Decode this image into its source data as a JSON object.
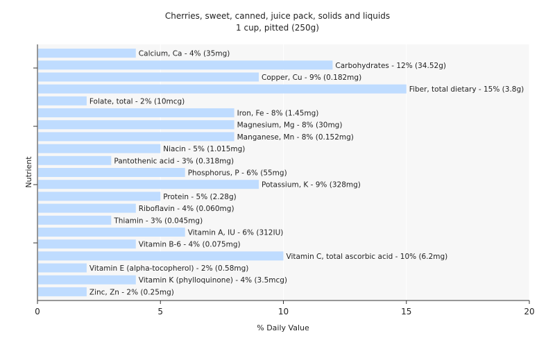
{
  "chart_data": {
    "type": "bar",
    "orientation": "horizontal",
    "title": "Cherries, sweet, canned, juice pack, solids and liquids",
    "subtitle": "1 cup, pitted (250g)",
    "xlabel": "% Daily Value",
    "ylabel": "Nutrient",
    "xlim": [
      0,
      20
    ],
    "xticks": [
      "0",
      "5",
      "10",
      "15",
      "20"
    ],
    "grid": true,
    "bar_color": "#bfdcff",
    "plot_bg": "#f7f7f7",
    "grid_color": "#ffffff",
    "categories": [
      "Calcium, Ca",
      "Carbohydrates",
      "Copper, Cu",
      "Fiber, total dietary",
      "Folate, total",
      "Iron, Fe",
      "Magnesium, Mg",
      "Manganese, Mn",
      "Niacin",
      "Pantothenic acid",
      "Phosphorus, P",
      "Potassium, K",
      "Protein",
      "Riboflavin",
      "Thiamin",
      "Vitamin A, IU",
      "Vitamin B-6",
      "Vitamin C, total ascorbic acid",
      "Vitamin E (alpha-tocopherol)",
      "Vitamin K (phylloquinone)",
      "Zinc, Zn"
    ],
    "values": [
      4,
      12,
      9,
      15,
      2,
      8,
      8,
      8,
      5,
      3,
      6,
      9,
      5,
      4,
      3,
      6,
      4,
      10,
      2,
      4,
      2
    ],
    "labels": [
      "Calcium, Ca - 4% (35mg)",
      "Carbohydrates - 12% (34.52g)",
      "Copper, Cu - 9% (0.182mg)",
      "Fiber, total dietary - 15% (3.8g)",
      "Folate, total - 2% (10mcg)",
      "Iron, Fe - 8% (1.45mg)",
      "Magnesium, Mg - 8% (30mg)",
      "Manganese, Mn - 8% (0.152mg)",
      "Niacin - 5% (1.015mg)",
      "Pantothenic acid - 3% (0.318mg)",
      "Phosphorus, P - 6% (55mg)",
      "Potassium, K - 9% (328mg)",
      "Protein - 5% (2.28g)",
      "Riboflavin - 4% (0.060mg)",
      "Thiamin - 3% (0.045mg)",
      "Vitamin A, IU - 6% (312IU)",
      "Vitamin B-6 - 4% (0.075mg)",
      "Vitamin C, total ascorbic acid - 10% (6.2mg)",
      "Vitamin E (alpha-tocopherol) - 2% (0.58mg)",
      "Vitamin K (phylloquinone) - 4% (3.5mcg)",
      "Zinc, Zn - 2% (0.25mg)"
    ]
  }
}
